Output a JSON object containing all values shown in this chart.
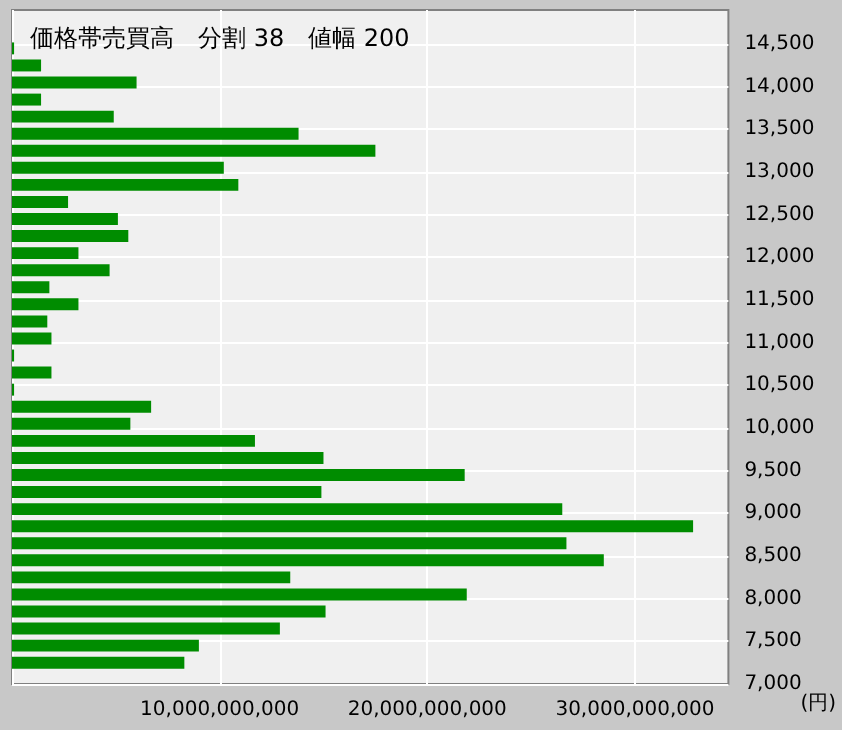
{
  "chart_data": {
    "type": "bar",
    "orientation": "horizontal",
    "title": "価格帯売買高　分割 38　値幅 200",
    "ylabel": "(円)",
    "x": [
      7250,
      7450,
      7650,
      7850,
      8050,
      8250,
      8450,
      8650,
      8850,
      9050,
      9250,
      9450,
      9650,
      9850,
      10050,
      10250,
      10450,
      10650,
      10850,
      11050,
      11250,
      11450,
      11650,
      11850,
      12050,
      12250,
      12450,
      12650,
      12850,
      13050,
      13250,
      13450,
      13650,
      13850,
      14050,
      14250,
      14450
    ],
    "values": [
      8300000000,
      9000000000,
      12900000000,
      15100000000,
      21900000000,
      13400000000,
      28500000000,
      26700000000,
      32800000000,
      26500000000,
      14900000000,
      21800000000,
      15000000000,
      11700000000,
      5700000000,
      6700000000,
      100000000,
      1900000000,
      100000000,
      1900000000,
      1700000000,
      3200000000,
      1800000000,
      4700000000,
      3200000000,
      5600000000,
      5100000000,
      2700000000,
      10900000000,
      10200000000,
      17500000000,
      13800000000,
      4900000000,
      1400000000,
      6000000000,
      1400000000,
      100000000
    ],
    "color": "#008c00",
    "xlim": [
      0,
      34500000000
    ],
    "xticks": [
      {
        "value": 0,
        "label": null
      },
      {
        "value": 10000000000,
        "label": "10,000,000,000"
      },
      {
        "value": 20000000000,
        "label": "20,000,000,000"
      },
      {
        "value": 30000000000,
        "label": "30,000,000,000"
      }
    ],
    "ylim": [
      7000,
      14900
    ],
    "yticks": [
      {
        "value": 7000,
        "label": "7,000"
      },
      {
        "value": 7500,
        "label": "7,500"
      },
      {
        "value": 8000,
        "label": "8,000"
      },
      {
        "value": 8500,
        "label": "8,500"
      },
      {
        "value": 9000,
        "label": "9,000"
      },
      {
        "value": 9500,
        "label": "9,500"
      },
      {
        "value": 10000,
        "label": "10,000"
      },
      {
        "value": 10500,
        "label": "10,500"
      },
      {
        "value": 11000,
        "label": "11,000"
      },
      {
        "value": 11500,
        "label": "11,500"
      },
      {
        "value": 12000,
        "label": "12,000"
      },
      {
        "value": 12500,
        "label": "12,500"
      },
      {
        "value": 13000,
        "label": "13,000"
      },
      {
        "value": 13500,
        "label": "13,500"
      },
      {
        "value": 14000,
        "label": "14,000"
      },
      {
        "value": 14500,
        "label": "14,500"
      }
    ],
    "grid": true
  }
}
